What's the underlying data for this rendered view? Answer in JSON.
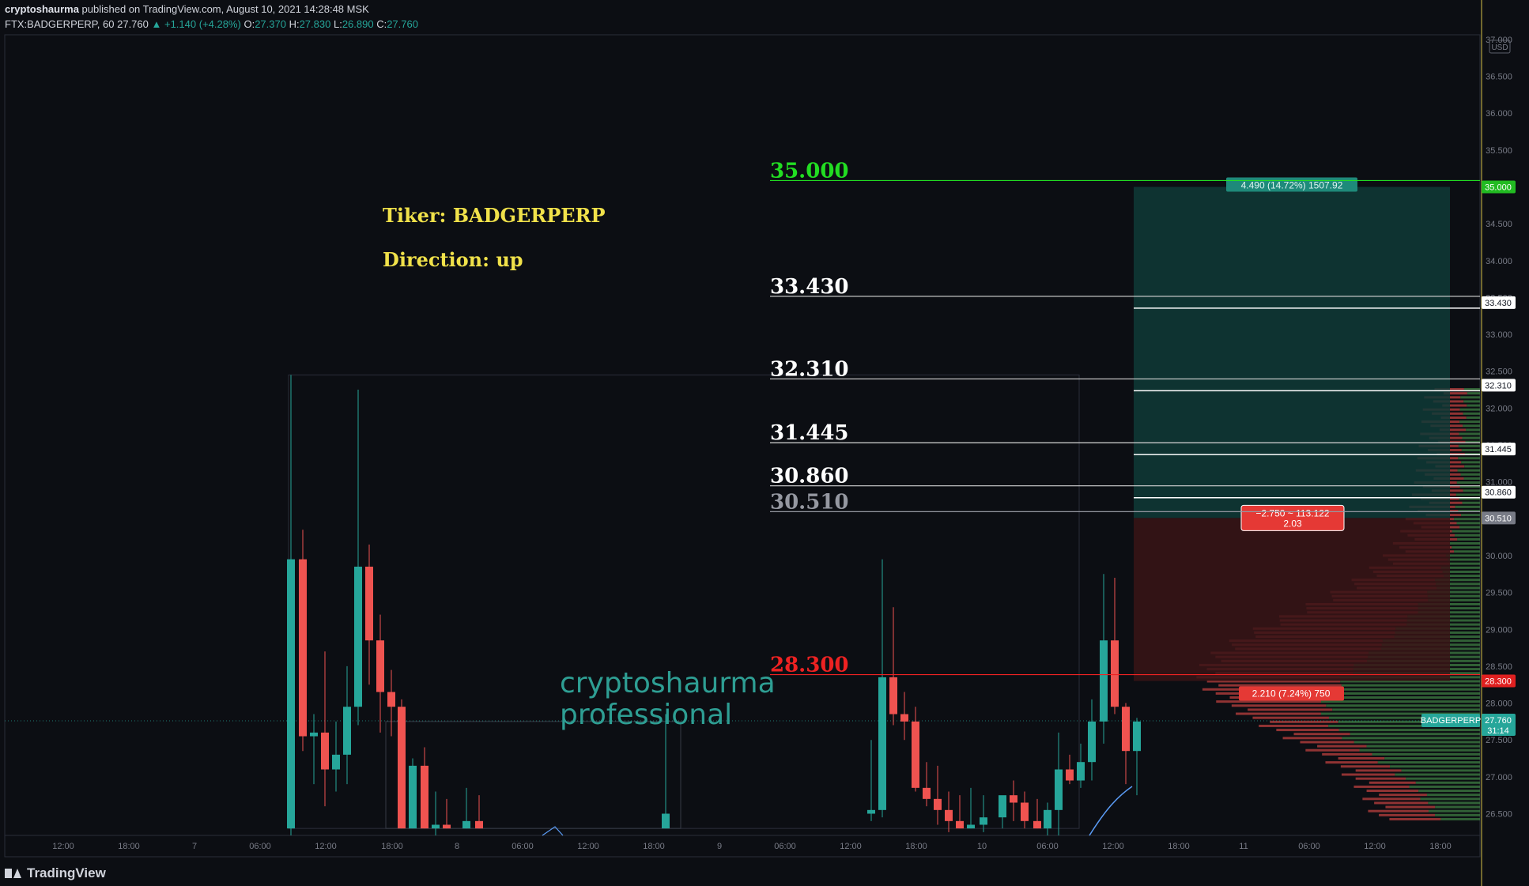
{
  "header": {
    "author": "cryptoshaurma",
    "published": " published on TradingView.com, August 10, 2021 14:28:48 MSK",
    "symbol": "FTX:BADGERPERP, 60",
    "last": "27.760",
    "change": "▲ +1.140 (+4.28%)",
    "o_label": "O:",
    "o": "27.370",
    "h_label": "H:",
    "h": "27.830",
    "l_label": "L:",
    "l": "26.890",
    "c_label": "C:",
    "c": "27.760"
  },
  "footer": {
    "brand": "TradingView"
  },
  "annotations": {
    "ticker": "Tiker:  BADGERPERP",
    "direction": "Direction:  up",
    "watermark_line1": "cryptoshaurma",
    "watermark_line2": "professional"
  },
  "chart_data": {
    "type": "candlestick",
    "currency": "USD",
    "y_ticks": [
      "26.500",
      "27.000",
      "27.500",
      "28.000",
      "28.500",
      "29.000",
      "29.500",
      "30.000",
      "30.500",
      "31.000",
      "31.500",
      "32.000",
      "32.500",
      "33.000",
      "33.500",
      "34.000",
      "34.500",
      "35.000",
      "35.500",
      "36.000",
      "36.500",
      "37.000"
    ],
    "x_ticks": [
      "12:00",
      "18:00",
      "7",
      "06:00",
      "12:00",
      "18:00",
      "8",
      "06:00",
      "12:00",
      "18:00",
      "9",
      "06:00",
      "12:00",
      "18:00",
      "10",
      "06:00",
      "12:00",
      "18:00",
      "11",
      "06:00",
      "12:00",
      "18:00"
    ],
    "levels": [
      {
        "value": "35.000",
        "color": "#22dd22"
      },
      {
        "value": "33.430",
        "color": "#ffffff"
      },
      {
        "value": "32.310",
        "color": "#ffffff"
      },
      {
        "value": "31.445",
        "color": "#ffffff"
      },
      {
        "value": "30.860",
        "color": "#ffffff"
      },
      {
        "value": "30.510",
        "color": "#9598a1"
      },
      {
        "value": "28.300",
        "color": "#ee2222"
      }
    ],
    "position": {
      "entry": 30.51,
      "target": 35.0,
      "stop": 28.3,
      "target_label": "4.490 (14.72%) 1507.92",
      "stop_label": "2.210 (7.24%) 750",
      "pnl_line1": "−2.750 ~ 113.122",
      "pnl_line2": "2.03"
    },
    "last_price": {
      "value": "27.760",
      "countdown": "31:14",
      "symbol_tag": "BADGERPERP"
    },
    "colors": {
      "up": "#26a69a",
      "down": "#ef5350",
      "target_fill": "#0f3a37",
      "stop_fill": "#3a1416"
    },
    "candles": [
      {
        "o": 26.3,
        "h": 32.45,
        "l": 26.1,
        "c": 29.95
      },
      {
        "o": 29.95,
        "h": 30.35,
        "l": 27.35,
        "c": 27.55
      },
      {
        "o": 27.55,
        "h": 27.85,
        "l": 26.9,
        "c": 27.6
      },
      {
        "o": 27.6,
        "h": 28.7,
        "l": 26.6,
        "c": 27.1
      },
      {
        "o": 27.1,
        "h": 27.75,
        "l": 26.8,
        "c": 27.3
      },
      {
        "o": 27.3,
        "h": 28.5,
        "l": 26.9,
        "c": 27.95
      },
      {
        "o": 27.95,
        "h": 32.25,
        "l": 27.7,
        "c": 29.85
      },
      {
        "o": 29.85,
        "h": 30.15,
        "l": 28.25,
        "c": 28.85
      },
      {
        "o": 28.85,
        "h": 29.2,
        "l": 27.6,
        "c": 28.15
      },
      {
        "o": 28.15,
        "h": 28.45,
        "l": 27.55,
        "c": 27.95
      },
      {
        "o": 27.95,
        "h": 28.05,
        "l": 26.3,
        "c": 26.3
      },
      {
        "o": 26.3,
        "h": 27.25,
        "l": 26.3,
        "c": 27.15
      },
      {
        "o": 27.15,
        "h": 27.4,
        "l": 26.3,
        "c": 26.3
      },
      {
        "o": 26.3,
        "h": 26.8,
        "l": 26.2,
        "c": 26.35
      },
      {
        "o": 26.35,
        "h": 26.7,
        "l": 26.3,
        "c": 26.3
      },
      {
        "o": 26.3,
        "h": 26.85,
        "l": 26.3,
        "c": 26.4
      },
      {
        "o": 26.4,
        "h": 26.75,
        "l": 26.3,
        "c": 26.3
      },
      {
        "o": 26.3,
        "h": 27.85,
        "l": 26.3,
        "c": 26.5
      },
      {
        "o": 26.5,
        "h": 27.5,
        "l": 26.4,
        "c": 26.55
      },
      {
        "o": 26.55,
        "h": 29.95,
        "l": 26.45,
        "c": 28.35
      },
      {
        "o": 28.35,
        "h": 29.3,
        "l": 27.7,
        "c": 27.85
      },
      {
        "o": 27.85,
        "h": 28.15,
        "l": 27.5,
        "c": 27.75
      },
      {
        "o": 27.75,
        "h": 27.95,
        "l": 26.8,
        "c": 26.85
      },
      {
        "o": 26.85,
        "h": 27.2,
        "l": 26.6,
        "c": 26.7
      },
      {
        "o": 26.7,
        "h": 27.15,
        "l": 26.35,
        "c": 26.55
      },
      {
        "o": 26.55,
        "h": 26.8,
        "l": 26.25,
        "c": 26.4
      },
      {
        "o": 26.4,
        "h": 26.75,
        "l": 26.3,
        "c": 26.3
      },
      {
        "o": 26.3,
        "h": 26.85,
        "l": 26.3,
        "c": 26.35
      },
      {
        "o": 26.35,
        "h": 26.75,
        "l": 26.25,
        "c": 26.45
      },
      {
        "o": 26.45,
        "h": 26.7,
        "l": 26.3,
        "c": 26.75
      },
      {
        "o": 26.75,
        "h": 26.95,
        "l": 26.4,
        "c": 26.65
      },
      {
        "o": 26.65,
        "h": 26.8,
        "l": 26.3,
        "c": 26.4
      },
      {
        "o": 26.4,
        "h": 26.7,
        "l": 26.3,
        "c": 26.3
      },
      {
        "o": 26.3,
        "h": 26.65,
        "l": 26.15,
        "c": 26.55
      },
      {
        "o": 26.55,
        "h": 27.6,
        "l": 26.2,
        "c": 27.1
      },
      {
        "o": 27.1,
        "h": 27.3,
        "l": 26.9,
        "c": 26.95
      },
      {
        "o": 26.95,
        "h": 27.45,
        "l": 26.85,
        "c": 27.2
      },
      {
        "o": 27.2,
        "h": 28.05,
        "l": 26.95,
        "c": 27.75
      },
      {
        "o": 27.75,
        "h": 29.75,
        "l": 27.45,
        "c": 28.85
      },
      {
        "o": 28.85,
        "h": 29.7,
        "l": 27.85,
        "c": 27.95
      },
      {
        "o": 27.95,
        "h": 28.0,
        "l": 26.9,
        "c": 27.35
      },
      {
        "o": 27.35,
        "h": 27.8,
        "l": 26.75,
        "c": 27.75
      }
    ]
  }
}
